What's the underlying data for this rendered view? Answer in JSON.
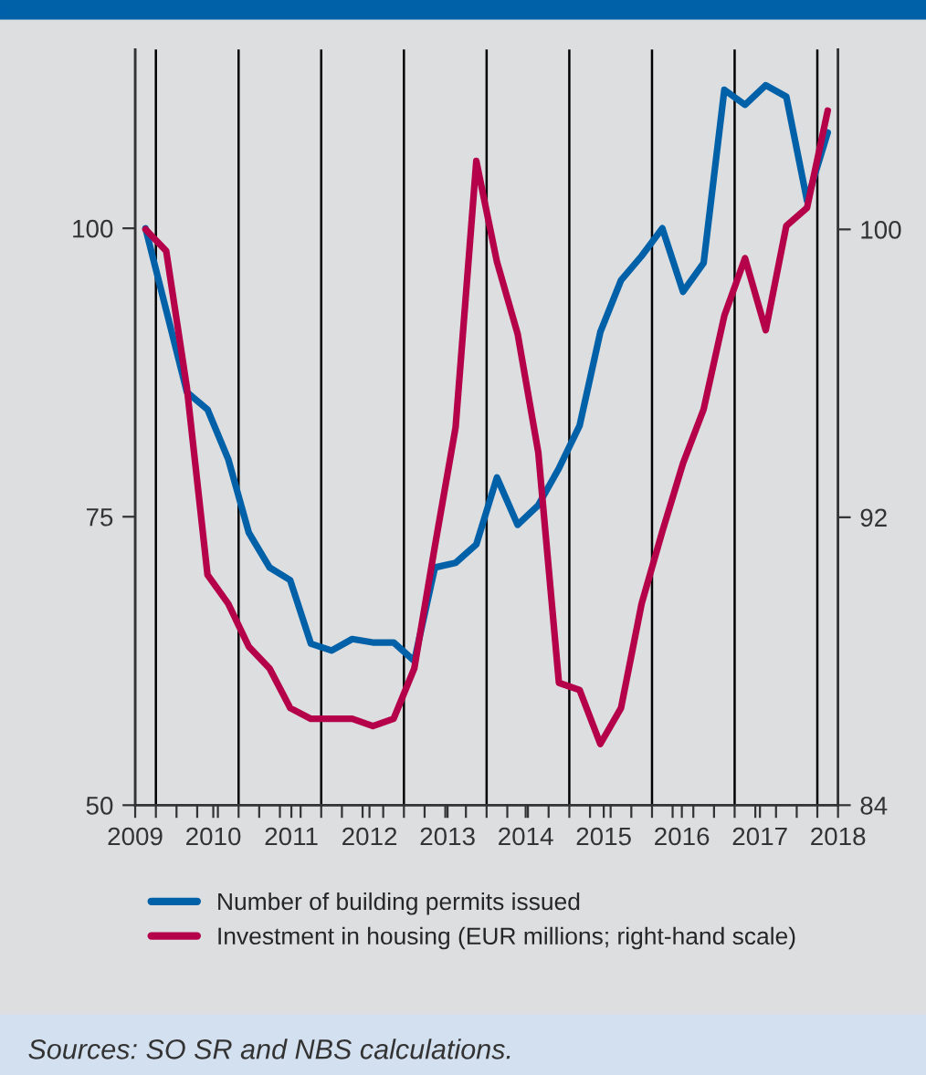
{
  "chart_data": {
    "type": "line",
    "x": [
      2009.132,
      2009.397,
      2009.662,
      2009.926,
      2010.191,
      2010.456,
      2010.721,
      2010.985,
      2011.25,
      2011.515,
      2011.779,
      2012.044,
      2012.309,
      2012.574,
      2012.838,
      2013.103,
      2013.368,
      2013.632,
      2013.897,
      2014.162,
      2014.426,
      2014.691,
      2014.956,
      2015.221,
      2015.485,
      2015.75,
      2016.015,
      2016.279,
      2016.544,
      2016.809,
      2017.074,
      2017.338,
      2017.603,
      2017.868
    ],
    "series": [
      {
        "name": "Number of building permits issued",
        "color": "#0060a8",
        "values": [
          100,
          92.9,
          85.8,
          84.3,
          80.0,
          73.6,
          70.6,
          69.5,
          64.0,
          63.4,
          64.4,
          64.1,
          64.1,
          62.5,
          70.6,
          71.0,
          72.6,
          78.4,
          74.3,
          76.0,
          79.2,
          82.9,
          91.0,
          95.5,
          97.6,
          100,
          94.5,
          97.0,
          112.0,
          110.7,
          112.4,
          111.4,
          102.4,
          108.3
        ]
      },
      {
        "name": "Investment in housing (EUR millions; right-hand scale)",
        "color": "#b5004a",
        "axis": "y2",
        "values": [
          100,
          99.4,
          95.6,
          90.4,
          89.6,
          88.4,
          87.8,
          86.7,
          86.4,
          86.4,
          86.4,
          86.2,
          86.4,
          87.8,
          91.2,
          94.5,
          101.9,
          99.1,
          97.1,
          93.8,
          87.4,
          87.2,
          85.7,
          86.7,
          89.6,
          91.6,
          93.5,
          95.0,
          97.6,
          99.2,
          97.2,
          100.1,
          100.6,
          103.3
        ]
      }
    ],
    "xlim": [
      2009,
      2018
    ],
    "xticks": [
      2009,
      {
        "value": 2009.265,
        "label": null
      },
      {
        "value": 2009.529,
        "label": null
      },
      {
        "value": 2009.794,
        "label": null
      },
      2010,
      {
        "value": 2010.059,
        "label": null
      },
      {
        "value": 2010.324,
        "label": null
      },
      {
        "value": 2010.588,
        "label": null
      },
      {
        "value": 2010.853,
        "label": null
      },
      2011,
      {
        "value": 2011.118,
        "label": null
      },
      {
        "value": 2011.382,
        "label": null
      },
      {
        "value": 2011.647,
        "label": null
      },
      {
        "value": 2011.912,
        "label": null
      },
      2012,
      {
        "value": 2012.176,
        "label": null
      },
      {
        "value": 2012.441,
        "label": null
      },
      {
        "value": 2012.706,
        "label": null
      },
      {
        "value": 2012.971,
        "label": null
      },
      2013,
      {
        "value": 2013.235,
        "label": null
      },
      {
        "value": 2013.5,
        "label": null
      },
      {
        "value": 2013.765,
        "label": null
      },
      2014,
      {
        "value": 2014.029,
        "label": null
      },
      {
        "value": 2014.294,
        "label": null
      },
      {
        "value": 2014.559,
        "label": null
      },
      {
        "value": 2014.824,
        "label": null
      },
      2015,
      {
        "value": 2015.088,
        "label": null
      },
      {
        "value": 2015.353,
        "label": null
      },
      {
        "value": 2015.618,
        "label": null
      },
      {
        "value": 2015.882,
        "label": null
      },
      2016,
      {
        "value": 2016.147,
        "label": null
      },
      {
        "value": 2016.412,
        "label": null
      },
      {
        "value": 2016.676,
        "label": null
      },
      {
        "value": 2016.941,
        "label": null
      },
      2017,
      {
        "value": 2017.206,
        "label": null
      },
      {
        "value": 2017.471,
        "label": null
      },
      {
        "value": 2017.735,
        "label": null
      },
      2018
    ],
    "ylim": [
      50,
      115.5
    ],
    "yticks": [
      50,
      75,
      100
    ],
    "y2lim": [
      84,
      105
    ],
    "y2ticks": [
      84,
      92,
      100
    ],
    "ref_lines": [
      {
        "axis": "x",
        "value": 2009.265,
        "color": "#000000"
      },
      {
        "axis": "x",
        "value": 2010.324,
        "color": "#000000"
      },
      {
        "axis": "x",
        "value": 2011.382,
        "color": "#000000"
      },
      {
        "axis": "x",
        "value": 2012.441,
        "color": "#000000"
      },
      {
        "axis": "x",
        "value": 2013.5,
        "color": "#000000"
      },
      {
        "axis": "x",
        "value": 2014.559,
        "color": "#000000"
      },
      {
        "axis": "x",
        "value": 2015.618,
        "color": "#000000"
      },
      {
        "axis": "x",
        "value": 2016.676,
        "color": "#000000"
      },
      {
        "axis": "x",
        "value": 2017.735,
        "color": "#000000"
      }
    ],
    "annotations": [
      "Sources: SO SR and NBS calculations."
    ],
    "legend": "bottom",
    "grid": false,
    "marker": "none",
    "line_style": "solid"
  }
}
